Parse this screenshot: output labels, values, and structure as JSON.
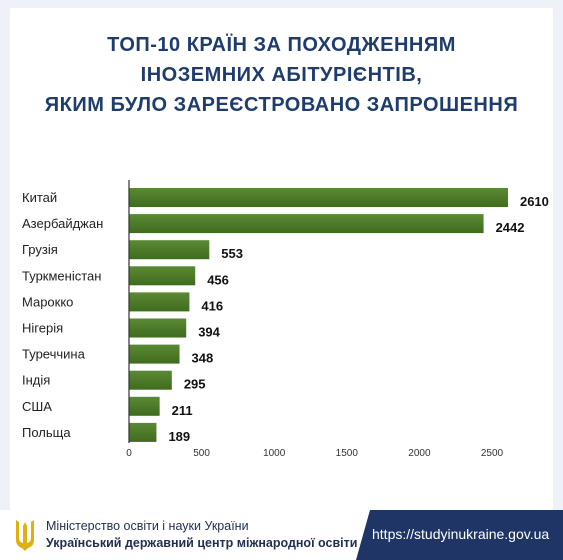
{
  "title_lines": [
    "ТОП-10 КРАЇН ЗА ПОХОДЖЕННЯМ",
    "ІНОЗЕМНИХ АБІТУРІЄНТІВ,",
    "ЯКИМ БУЛО ЗАРЕЄСТРОВАНО ЗАПРОШЕННЯ"
  ],
  "chart_data": {
    "type": "bar",
    "orientation": "horizontal",
    "categories": [
      "Китай",
      "Азербайджан",
      "Грузія",
      "Туркменістан",
      "Марокко",
      "Нігерія",
      "Туреччина",
      "Індія",
      "США",
      "Польща"
    ],
    "values": [
      2610,
      2442,
      553,
      456,
      416,
      394,
      348,
      295,
      211,
      189
    ],
    "xlim": [
      0,
      2500
    ],
    "xticks": [
      "0",
      "500",
      "1000",
      "1500",
      "2000",
      "2500"
    ],
    "grid": false,
    "colors": {
      "bar_top": "#5b8a33",
      "bar_bottom": "#3f6b1f"
    }
  },
  "footer": {
    "ministry": "Міністерство освіти і науки України",
    "center": "Український державний центр міжнародної освіти",
    "url": "https://studyinukraine.gov.ua",
    "logo_icon": "trident-icon",
    "colors": {
      "band": "#1e3566",
      "logo": "#e0b010"
    }
  }
}
